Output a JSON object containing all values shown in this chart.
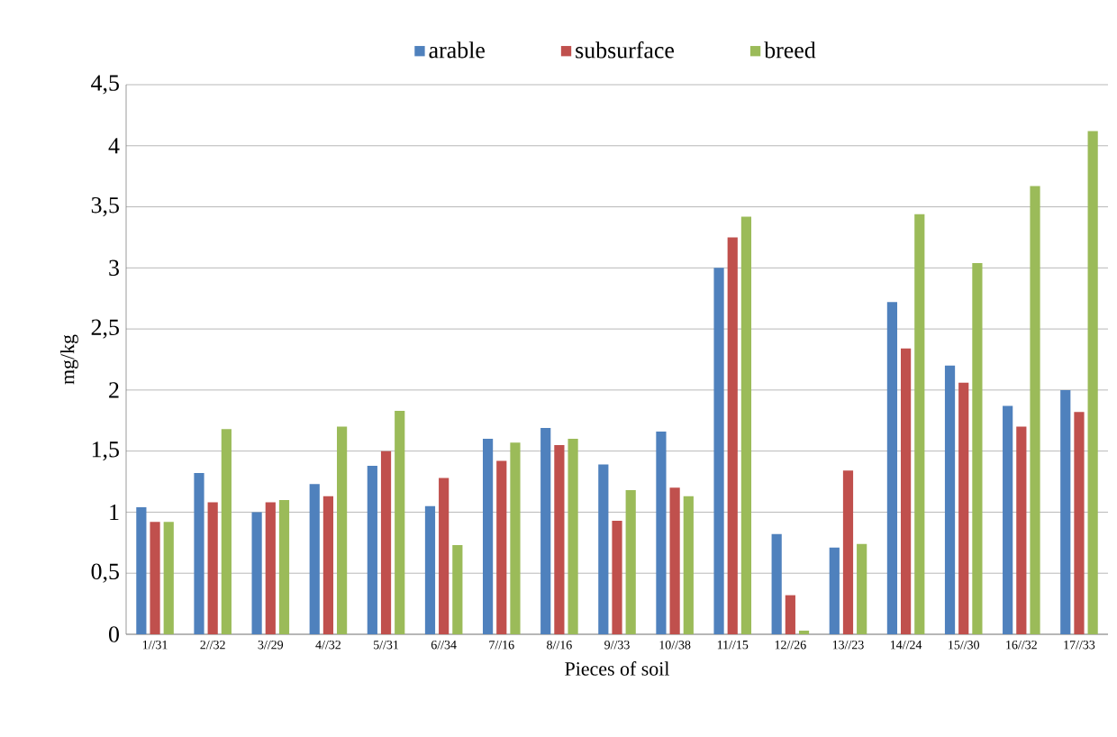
{
  "chart_data": {
    "type": "bar",
    "xlabel": "Pieces of soil",
    "ylabel": "mg/kg",
    "categories": [
      "1//31",
      "2//32",
      "3//29",
      "4//32",
      "5//31",
      "6//34",
      "7//16",
      "8//16",
      "9//33",
      "10//38",
      "11//15",
      "12//26",
      "13//23",
      "14//24",
      "15//30",
      "16//32",
      "17//33"
    ],
    "series": [
      {
        "name": "arable",
        "color": "#4f81bd",
        "values": [
          1.04,
          1.32,
          1.0,
          1.23,
          1.38,
          1.05,
          1.6,
          1.69,
          1.39,
          1.66,
          3.0,
          0.82,
          0.71,
          2.72,
          2.2,
          1.87,
          2.0
        ]
      },
      {
        "name": "subsurface",
        "color": "#c0504d",
        "values": [
          0.92,
          1.08,
          1.08,
          1.13,
          1.5,
          1.28,
          1.42,
          1.55,
          0.93,
          1.2,
          3.25,
          0.32,
          1.34,
          2.34,
          2.06,
          1.7,
          1.82
        ]
      },
      {
        "name": "breed",
        "color": "#9bbb59",
        "values": [
          0.92,
          1.68,
          1.1,
          1.7,
          1.83,
          0.73,
          1.57,
          1.6,
          1.18,
          1.13,
          3.42,
          0.03,
          0.74,
          3.44,
          3.04,
          3.67,
          4.12
        ]
      }
    ],
    "ylim": [
      0,
      4.5
    ],
    "yticks": [
      0,
      {
        "value": 0.5,
        "label": "0,5"
      },
      1,
      {
        "value": 1.5,
        "label": "1,5"
      },
      2,
      {
        "value": 2.5,
        "label": "2,5"
      },
      3,
      {
        "value": 3.5,
        "label": "3,5"
      },
      4,
      {
        "value": 4.5,
        "label": "4,5"
      }
    ],
    "grid": "y",
    "legend": "top"
  }
}
